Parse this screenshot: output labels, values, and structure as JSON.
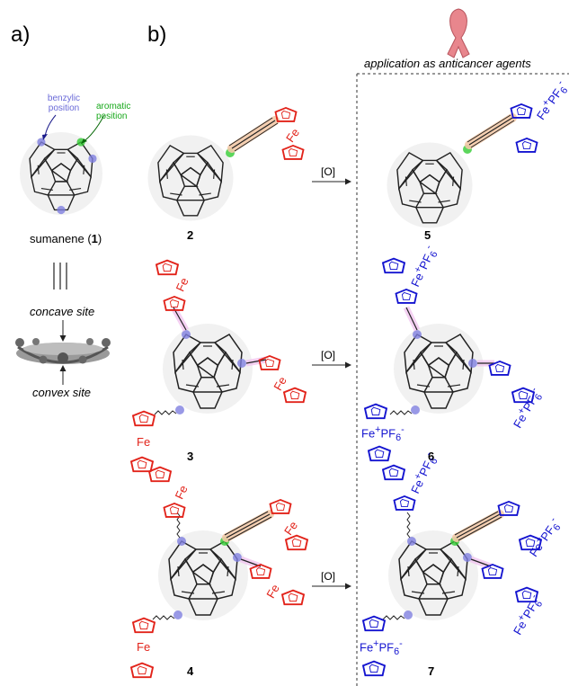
{
  "panel_a": "a)",
  "panel_b": "b)",
  "application_title": "application as anticancer agents",
  "benzylic_label": "benzylic position",
  "aromatic_label": "aromatic position",
  "sumanene_name": "sumanene (",
  "sumanene_number": "1",
  "sumanene_close": ")",
  "concave_site": "concave site",
  "convex_site": "convex site",
  "oxidation": "[O]",
  "compounds": [
    "2",
    "3",
    "4",
    "5",
    "6",
    "7"
  ],
  "fe": "Fe",
  "fe_cation": "Fe",
  "pf6": "PF",
  "colors": {
    "ferrocene": "#e2231a",
    "ferrocenium": "#1414d0",
    "benzylic_highlight": "#8080e0",
    "aromatic_highlight": "#33cc33",
    "alkyne_highlight": "#f3c9a8",
    "alkene_highlight": "#f2c6f0",
    "ribbon": "#e8868d"
  }
}
